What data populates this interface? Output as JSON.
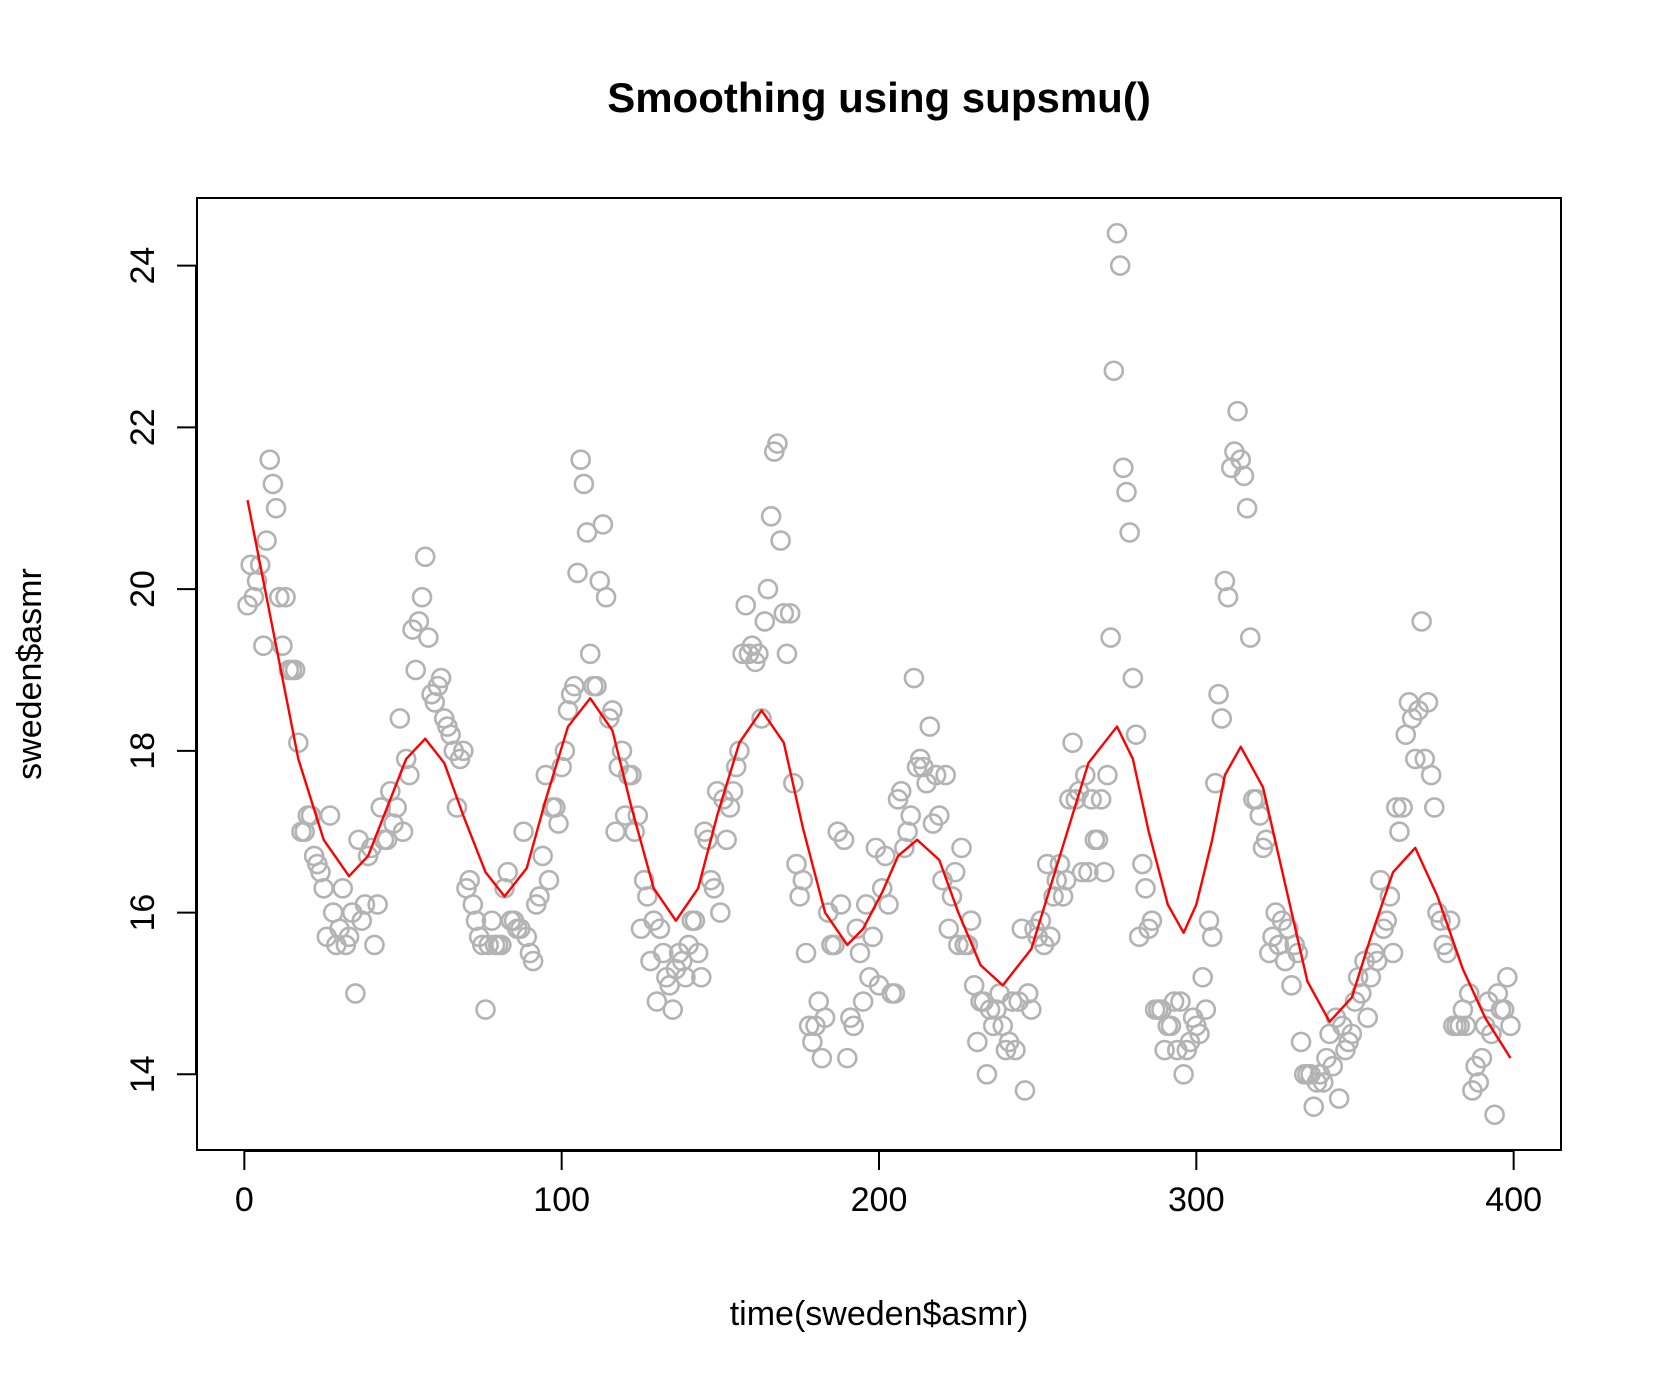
{
  "chart_data": {
    "type": "scatter",
    "title": "Smoothing using supsmu()",
    "x_label": "time(sweden$asmr)",
    "y_label": "sweden$asmr",
    "xlim": [
      -14.92,
      414.92
    ],
    "ylim": [
      13.064,
      24.836
    ],
    "xticks": [
      0,
      100,
      200,
      300,
      400
    ],
    "yticks": [
      14,
      16,
      18,
      20,
      22,
      24
    ],
    "series": [
      {
        "type": "scatter",
        "marker": "open-circle",
        "color": "#b3b3b3",
        "x": [
          1,
          2,
          3,
          4,
          5,
          6,
          7,
          8,
          9,
          10,
          11,
          12,
          13,
          14,
          15,
          16,
          17,
          18,
          19,
          20,
          21,
          22,
          23,
          24,
          25,
          26,
          27,
          28,
          29,
          30,
          31,
          32,
          33,
          34,
          35,
          36,
          37,
          38,
          39,
          40,
          41,
          42,
          43,
          44,
          45,
          46,
          47,
          48,
          49,
          50,
          51,
          52,
          53,
          54,
          55,
          56,
          57,
          58,
          59,
          60,
          61,
          62,
          63,
          64,
          65,
          66,
          67,
          68,
          69,
          70,
          71,
          72,
          73,
          74,
          75,
          76,
          77,
          78,
          79,
          80,
          81,
          82,
          83,
          84,
          85,
          86,
          87,
          88,
          89,
          90,
          91,
          92,
          93,
          94,
          95,
          96,
          97,
          98,
          99,
          100,
          101,
          102,
          103,
          104,
          105,
          106,
          107,
          108,
          109,
          110,
          111,
          112,
          113,
          114,
          115,
          116,
          117,
          118,
          119,
          120,
          121,
          122,
          123,
          124,
          125,
          126,
          127,
          128,
          129,
          130,
          131,
          132,
          133,
          134,
          135,
          136,
          137,
          138,
          139,
          140,
          141,
          142,
          143,
          144,
          145,
          146,
          147,
          148,
          149,
          150,
          151,
          152,
          153,
          154,
          155,
          156,
          157,
          158,
          159,
          160,
          161,
          162,
          163,
          164,
          165,
          166,
          167,
          168,
          169,
          170,
          171,
          172,
          173,
          174,
          175,
          176,
          177,
          178,
          179,
          180,
          181,
          182,
          183,
          184,
          185,
          186,
          187,
          188,
          189,
          190,
          191,
          192,
          193,
          194,
          195,
          196,
          197,
          198,
          199,
          200,
          201,
          202,
          203,
          204,
          205,
          206,
          207,
          208,
          209,
          210,
          211,
          212,
          213,
          214,
          215,
          216,
          217,
          218,
          219,
          220,
          221,
          222,
          223,
          224,
          225,
          226,
          227,
          228,
          229,
          230,
          231,
          232,
          233,
          234,
          235,
          236,
          237,
          238,
          239,
          240,
          241,
          242,
          243,
          244,
          245,
          246,
          247,
          248,
          249,
          250,
          251,
          252,
          253,
          254,
          255,
          256,
          257,
          258,
          259,
          260,
          261,
          262,
          263,
          264,
          265,
          266,
          267,
          268,
          269,
          270,
          271,
          272,
          273,
          274,
          275,
          276,
          277,
          278,
          279,
          280,
          281,
          282,
          283,
          284,
          285,
          286,
          287,
          288,
          289,
          290,
          291,
          292,
          293,
          294,
          295,
          296,
          297,
          298,
          299,
          300,
          301,
          302,
          303,
          304,
          305,
          306,
          307,
          308,
          309,
          310,
          311,
          312,
          313,
          314,
          315,
          316,
          317,
          318,
          319,
          320,
          321,
          322,
          323,
          324,
          325,
          326,
          327,
          328,
          329,
          330,
          331,
          332,
          333,
          334,
          335,
          336,
          337,
          338,
          339,
          340,
          341,
          342,
          343,
          344,
          345,
          346,
          347,
          348,
          349,
          350,
          351,
          352,
          353,
          354,
          355,
          356,
          357,
          358,
          359,
          360,
          361,
          362,
          363,
          364,
          365,
          366,
          367,
          368,
          369,
          370,
          371,
          372,
          373,
          374,
          375,
          376,
          377,
          378,
          379,
          380,
          381,
          382,
          383,
          384,
          385,
          386,
          387,
          388,
          389,
          390,
          391,
          392,
          393,
          394,
          395,
          396,
          397,
          398,
          399
        ],
        "values": [
          19.8,
          20.3,
          19.9,
          20.1,
          20.3,
          19.3,
          20.6,
          21.6,
          21.3,
          21.0,
          19.9,
          19.3,
          19.9,
          19.0,
          19.0,
          19.0,
          18.1,
          17.0,
          17.0,
          17.2,
          17.2,
          16.7,
          16.6,
          16.5,
          16.3,
          15.7,
          17.2,
          16.0,
          15.6,
          15.8,
          16.3,
          15.6,
          15.7,
          16.0,
          15.0,
          16.9,
          15.9,
          16.1,
          16.7,
          16.8,
          15.6,
          16.1,
          17.3,
          16.9,
          16.9,
          17.5,
          17.1,
          17.3,
          18.4,
          17.0,
          17.9,
          17.7,
          19.5,
          19.0,
          19.6,
          19.9,
          20.4,
          19.4,
          18.7,
          18.6,
          18.8,
          18.9,
          18.4,
          18.3,
          18.2,
          18.0,
          17.3,
          17.9,
          18.0,
          16.3,
          16.4,
          16.1,
          15.9,
          15.7,
          15.6,
          14.8,
          15.6,
          15.9,
          15.6,
          15.6,
          15.6,
          16.3,
          16.5,
          15.9,
          15.9,
          15.8,
          15.8,
          17.0,
          15.7,
          15.5,
          15.4,
          16.1,
          16.2,
          16.7,
          17.7,
          16.4,
          17.3,
          17.3,
          17.1,
          17.8,
          18.0,
          18.5,
          18.7,
          18.8,
          20.2,
          21.6,
          21.3,
          20.7,
          19.2,
          18.8,
          18.8,
          20.1,
          20.8,
          19.9,
          18.4,
          18.5,
          17.0,
          17.8,
          18.0,
          17.2,
          17.7,
          17.7,
          17.0,
          17.2,
          15.8,
          16.4,
          16.2,
          15.4,
          15.9,
          14.9,
          15.8,
          15.5,
          15.2,
          15.1,
          14.8,
          15.3,
          15.5,
          15.4,
          15.2,
          15.6,
          15.9,
          15.9,
          15.5,
          15.2,
          17.0,
          16.9,
          16.4,
          16.3,
          17.5,
          16.0,
          17.4,
          16.9,
          17.3,
          17.5,
          17.8,
          18.0,
          19.2,
          19.8,
          19.2,
          19.3,
          19.1,
          19.2,
          18.4,
          19.6,
          20.0,
          20.9,
          21.7,
          21.8,
          20.6,
          19.7,
          19.2,
          19.7,
          17.6,
          16.6,
          16.2,
          16.4,
          15.5,
          14.6,
          14.4,
          14.6,
          14.9,
          14.2,
          14.7,
          16.0,
          15.6,
          15.6,
          17.0,
          16.1,
          16.9,
          14.2,
          14.7,
          14.6,
          15.8,
          15.5,
          14.9,
          16.1,
          15.2,
          15.7,
          16.8,
          15.1,
          16.3,
          16.7,
          16.1,
          15.0,
          15.0,
          17.4,
          17.5,
          16.8,
          17.0,
          17.2,
          18.9,
          17.8,
          17.9,
          17.8,
          17.6,
          18.3,
          17.1,
          17.7,
          17.2,
          16.4,
          17.7,
          15.8,
          16.2,
          16.5,
          15.6,
          16.8,
          15.6,
          15.6,
          15.9,
          15.1,
          14.4,
          14.9,
          14.9,
          14.0,
          14.8,
          14.6,
          14.8,
          15.0,
          14.6,
          14.3,
          14.4,
          14.9,
          14.3,
          14.9,
          15.8,
          13.8,
          15.0,
          14.8,
          15.8,
          15.7,
          15.9,
          15.6,
          16.6,
          15.7,
          16.2,
          16.4,
          16.6,
          16.2,
          16.4,
          17.4,
          18.1,
          17.4,
          17.5,
          16.5,
          17.7,
          16.5,
          17.4,
          16.9,
          16.9,
          17.4,
          16.5,
          17.7,
          19.4,
          22.7,
          24.4,
          24.0,
          21.5,
          21.2,
          20.7,
          18.9,
          18.2,
          15.7,
          16.6,
          16.3,
          15.8,
          15.9,
          14.8,
          14.8,
          14.8,
          14.3,
          14.6,
          14.6,
          14.9,
          14.3,
          14.9,
          14.0,
          14.3,
          14.4,
          14.7,
          14.6,
          14.5,
          15.2,
          14.8,
          15.9,
          15.7,
          17.6,
          18.7,
          18.4,
          20.1,
          19.9,
          21.5,
          21.7,
          22.2,
          21.6,
          21.4,
          21.0,
          19.4,
          17.4,
          17.4,
          17.2,
          16.8,
          16.9,
          15.5,
          15.7,
          16.0,
          15.6,
          15.9,
          15.4,
          15.8,
          15.1,
          15.6,
          15.5,
          14.4,
          14.0,
          14.0,
          14.0,
          13.6,
          13.9,
          14.0,
          13.9,
          14.2,
          14.5,
          14.1,
          14.7,
          13.7,
          14.6,
          14.3,
          14.4,
          14.5,
          14.9,
          15.2,
          15.0,
          15.4,
          14.7,
          15.2,
          15.5,
          15.4,
          16.4,
          15.8,
          15.9,
          16.2,
          15.5,
          17.3,
          17.0,
          17.3,
          18.2,
          18.6,
          18.4,
          17.9,
          18.5,
          19.6,
          17.9,
          18.6,
          17.7,
          17.3,
          16.0,
          15.9,
          15.6,
          15.5,
          15.9,
          14.6,
          14.6,
          14.6,
          14.8,
          14.6,
          15.0,
          13.8,
          14.1,
          13.9,
          14.2,
          14.6,
          14.9,
          14.5,
          13.5,
          15.0,
          14.8,
          14.8,
          15.2,
          14.6
        ]
      },
      {
        "type": "line",
        "color": "#ff0000",
        "x": [
          1,
          9,
          17,
          25,
          33,
          39,
          45,
          51,
          57,
          63,
          69,
          76,
          82,
          89,
          95,
          102,
          109,
          116,
          122,
          129,
          136,
          143,
          149,
          156,
          163,
          170,
          176,
          183,
          190,
          195,
          201,
          206,
          212,
          219,
          225,
          232,
          239,
          248,
          257,
          266,
          275,
          280,
          285,
          291,
          296,
          300,
          305,
          309,
          314,
          321,
          328,
          335,
          342,
          349,
          355,
          362,
          369,
          376,
          384,
          391,
          399
        ],
        "values": [
          21.1,
          19.5,
          17.9,
          16.9,
          16.45,
          16.7,
          17.3,
          17.9,
          18.15,
          17.85,
          17.2,
          16.5,
          16.2,
          16.55,
          17.4,
          18.3,
          18.65,
          18.25,
          17.3,
          16.3,
          15.9,
          16.3,
          17.2,
          18.1,
          18.5,
          18.1,
          17.05,
          16.0,
          15.6,
          15.8,
          16.25,
          16.7,
          16.9,
          16.65,
          16.0,
          15.35,
          15.1,
          15.55,
          16.7,
          17.85,
          18.3,
          17.9,
          17.0,
          16.1,
          15.75,
          16.1,
          16.9,
          17.7,
          18.05,
          17.55,
          16.35,
          15.15,
          14.65,
          14.95,
          15.7,
          16.5,
          16.8,
          16.2,
          15.3,
          14.7,
          14.2
        ]
      }
    ]
  }
}
